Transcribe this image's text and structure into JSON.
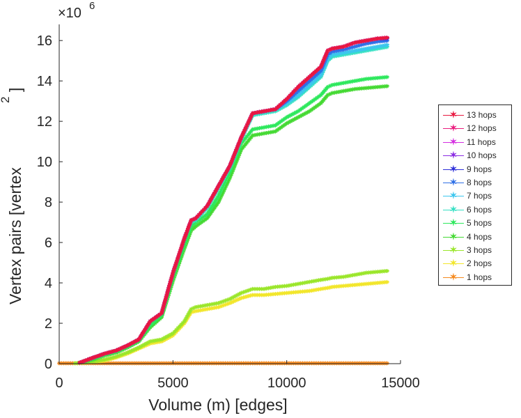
{
  "chart_data": {
    "type": "line",
    "title": "",
    "xlabel": "Volume (m) [edges]",
    "ylabel": "Vertex pairs [vertex",
    "ylabel_superscript": "2",
    "ylabel_close": "]",
    "y_exponent_label": "×10",
    "y_exponent_power": "6",
    "xlim": [
      0,
      15000
    ],
    "ylim": [
      0,
      16.8
    ],
    "xticks": [
      0,
      5000,
      10000,
      15000
    ],
    "xtick_labels": [
      "0",
      "5000",
      "10000",
      "15000"
    ],
    "yticks": [
      0,
      2,
      4,
      6,
      8,
      10,
      12,
      14,
      16
    ],
    "ytick_labels": [
      "0",
      "2",
      "4",
      "6",
      "8",
      "10",
      "12",
      "14",
      "16"
    ],
    "y_units": "millions (×10^6)",
    "marker": "*",
    "legend_position": "outside-right",
    "series": [
      {
        "name": "13 hops",
        "color": "#e8173f",
        "x": [
          900,
          1500,
          2000,
          2500,
          3000,
          3500,
          4000,
          4500,
          5000,
          5500,
          5800,
          6000,
          6500,
          7000,
          7500,
          8000,
          8500,
          9000,
          9500,
          10000,
          10500,
          11000,
          11500,
          11800,
          12000,
          12500,
          13000,
          13500,
          14000,
          14500
        ],
        "y": [
          0.05,
          0.3,
          0.5,
          0.65,
          0.9,
          1.2,
          2.1,
          2.5,
          4.5,
          6.2,
          7.1,
          7.2,
          7.8,
          8.8,
          9.8,
          11.2,
          12.4,
          12.5,
          12.6,
          13.1,
          13.7,
          14.2,
          14.7,
          15.5,
          15.6,
          15.7,
          15.9,
          16.0,
          16.1,
          16.15
        ]
      },
      {
        "name": "12 hops",
        "color": "#ea1d7e",
        "x": [
          900,
          1500,
          2000,
          2500,
          3000,
          3500,
          4000,
          4500,
          5000,
          5500,
          5800,
          6000,
          6500,
          7000,
          7500,
          8000,
          8500,
          9000,
          9500,
          10000,
          10500,
          11000,
          11500,
          11800,
          12000,
          12500,
          13000,
          13500,
          14000,
          14500
        ],
        "y": [
          0.05,
          0.3,
          0.5,
          0.65,
          0.9,
          1.2,
          2.1,
          2.5,
          4.5,
          6.2,
          7.1,
          7.2,
          7.8,
          8.8,
          9.8,
          11.2,
          12.4,
          12.5,
          12.6,
          13.1,
          13.7,
          14.2,
          14.7,
          15.5,
          15.6,
          15.7,
          15.9,
          16.0,
          16.1,
          16.15
        ]
      },
      {
        "name": "11 hops",
        "color": "#d42ee0",
        "x": [
          900,
          1500,
          2000,
          2500,
          3000,
          3500,
          4000,
          4500,
          5000,
          5500,
          5800,
          6000,
          6500,
          7000,
          7500,
          8000,
          8500,
          9000,
          9500,
          10000,
          10500,
          11000,
          11500,
          11800,
          12000,
          12500,
          13000,
          13500,
          14000,
          14500
        ],
        "y": [
          0.05,
          0.3,
          0.5,
          0.65,
          0.9,
          1.2,
          2.1,
          2.5,
          4.5,
          6.2,
          7.1,
          7.2,
          7.8,
          8.8,
          9.8,
          11.2,
          12.4,
          12.5,
          12.6,
          13.1,
          13.7,
          14.2,
          14.7,
          15.5,
          15.6,
          15.7,
          15.9,
          16.0,
          16.1,
          16.15
        ]
      },
      {
        "name": "10 hops",
        "color": "#8a2be2",
        "x": [
          900,
          1500,
          2000,
          2500,
          3000,
          3500,
          4000,
          4500,
          5000,
          5500,
          5800,
          6000,
          6500,
          7000,
          7500,
          8000,
          8500,
          9000,
          9500,
          10000,
          10500,
          11000,
          11500,
          11800,
          12000,
          12500,
          13000,
          13500,
          14000,
          14500
        ],
        "y": [
          0.05,
          0.3,
          0.5,
          0.65,
          0.9,
          1.2,
          2.1,
          2.5,
          4.5,
          6.2,
          7.1,
          7.2,
          7.8,
          8.8,
          9.8,
          11.2,
          12.4,
          12.5,
          12.6,
          13.1,
          13.7,
          14.2,
          14.7,
          15.5,
          15.6,
          15.7,
          15.9,
          16.0,
          16.1,
          16.15
        ]
      },
      {
        "name": "9 hops",
        "color": "#2d2fd8",
        "x": [
          900,
          1500,
          2000,
          2500,
          3000,
          3500,
          4000,
          4500,
          5000,
          5500,
          5800,
          6000,
          6500,
          7000,
          7500,
          8000,
          8500,
          9000,
          9500,
          10000,
          10500,
          11000,
          11500,
          11800,
          12000,
          12500,
          13000,
          13500,
          14000,
          14500
        ],
        "y": [
          0.05,
          0.3,
          0.5,
          0.65,
          0.9,
          1.2,
          2.1,
          2.5,
          4.5,
          6.2,
          7.1,
          7.2,
          7.8,
          8.8,
          9.8,
          11.2,
          12.4,
          12.5,
          12.6,
          13.1,
          13.7,
          14.2,
          14.7,
          15.5,
          15.6,
          15.7,
          15.9,
          16.0,
          16.1,
          16.1
        ]
      },
      {
        "name": "8 hops",
        "color": "#2e6fe6",
        "x": [
          900,
          1500,
          2000,
          2500,
          3000,
          3500,
          4000,
          4500,
          5000,
          5500,
          5800,
          6000,
          6500,
          7000,
          7500,
          8000,
          8500,
          9000,
          9500,
          10000,
          10500,
          11000,
          11500,
          11800,
          12000,
          12500,
          13000,
          13500,
          14000,
          14500
        ],
        "y": [
          0.05,
          0.3,
          0.5,
          0.65,
          0.9,
          1.2,
          2.1,
          2.5,
          4.5,
          6.2,
          7.1,
          7.2,
          7.8,
          8.8,
          9.8,
          11.2,
          12.4,
          12.5,
          12.6,
          13.0,
          13.5,
          14.0,
          14.5,
          15.3,
          15.45,
          15.55,
          15.7,
          15.85,
          15.95,
          16.0
        ]
      },
      {
        "name": "7 hops",
        "color": "#3cc6ee",
        "x": [
          900,
          1500,
          2000,
          2500,
          3000,
          3500,
          4000,
          4500,
          5000,
          5500,
          5800,
          6000,
          6500,
          7000,
          7500,
          8000,
          8500,
          9000,
          9500,
          10000,
          10500,
          11000,
          11500,
          11800,
          12000,
          12500,
          13000,
          13500,
          14000,
          14500
        ],
        "y": [
          0.05,
          0.3,
          0.5,
          0.65,
          0.9,
          1.2,
          2.1,
          2.5,
          4.5,
          6.2,
          7.1,
          7.2,
          7.8,
          8.8,
          9.8,
          11.2,
          12.4,
          12.5,
          12.6,
          12.9,
          13.3,
          13.8,
          14.3,
          15.1,
          15.3,
          15.4,
          15.5,
          15.6,
          15.7,
          15.8
        ]
      },
      {
        "name": "6 hops",
        "color": "#36e0c4",
        "x": [
          900,
          1500,
          2000,
          2500,
          3000,
          3500,
          4000,
          4500,
          5000,
          5500,
          5800,
          6000,
          6500,
          7000,
          7500,
          8000,
          8500,
          9000,
          9500,
          10000,
          10500,
          11000,
          11500,
          11800,
          12000,
          12500,
          13000,
          13500,
          14000,
          14500
        ],
        "y": [
          0.05,
          0.3,
          0.5,
          0.65,
          0.9,
          1.2,
          2.1,
          2.5,
          4.5,
          6.2,
          7.0,
          7.1,
          7.7,
          8.7,
          9.7,
          11.1,
          12.3,
          12.4,
          12.5,
          12.8,
          13.2,
          13.7,
          14.2,
          15.0,
          15.2,
          15.3,
          15.4,
          15.5,
          15.6,
          15.7
        ]
      },
      {
        "name": "5 hops",
        "color": "#2de85c",
        "x": [
          900,
          1500,
          2000,
          2500,
          3000,
          3500,
          4000,
          4500,
          5000,
          5500,
          5800,
          6000,
          6500,
          7000,
          7500,
          8000,
          8500,
          9000,
          9500,
          10000,
          10500,
          11000,
          11500,
          11800,
          12000,
          12500,
          13000,
          13500,
          14000,
          14500
        ],
        "y": [
          0.05,
          0.25,
          0.45,
          0.6,
          0.85,
          1.15,
          1.9,
          2.4,
          4.3,
          5.9,
          6.8,
          7.0,
          7.4,
          8.3,
          9.5,
          10.9,
          11.6,
          11.7,
          11.8,
          12.2,
          12.5,
          12.9,
          13.3,
          13.7,
          13.8,
          13.9,
          14.0,
          14.1,
          14.15,
          14.2
        ]
      },
      {
        "name": "4 hops",
        "color": "#44d932",
        "x": [
          900,
          1500,
          2000,
          2500,
          3000,
          3500,
          4000,
          4500,
          5000,
          5500,
          5800,
          6000,
          6500,
          7000,
          7500,
          8000,
          8500,
          9000,
          9500,
          10000,
          10500,
          11000,
          11500,
          11800,
          12000,
          12500,
          13000,
          13500,
          14000,
          14500
        ],
        "y": [
          0.05,
          0.2,
          0.4,
          0.55,
          0.8,
          1.1,
          1.8,
          2.3,
          4.1,
          5.7,
          6.6,
          6.8,
          7.2,
          8.0,
          9.2,
          10.6,
          11.3,
          11.4,
          11.5,
          11.9,
          12.2,
          12.5,
          12.9,
          13.3,
          13.4,
          13.5,
          13.6,
          13.65,
          13.7,
          13.75
        ]
      },
      {
        "name": "3 hops",
        "color": "#9ae62a",
        "x": [
          700,
          1500,
          2000,
          2500,
          3000,
          3500,
          4000,
          4500,
          5000,
          5500,
          5800,
          6000,
          6500,
          7000,
          7500,
          8000,
          8500,
          9000,
          9500,
          10000,
          10500,
          11000,
          11500,
          11800,
          12000,
          12500,
          13000,
          13500,
          14000,
          14500
        ],
        "y": [
          0.02,
          0.1,
          0.2,
          0.35,
          0.55,
          0.8,
          1.1,
          1.2,
          1.5,
          2.1,
          2.7,
          2.8,
          2.9,
          3.0,
          3.2,
          3.5,
          3.7,
          3.7,
          3.8,
          3.85,
          3.95,
          4.05,
          4.15,
          4.2,
          4.25,
          4.3,
          4.4,
          4.5,
          4.55,
          4.6
        ]
      },
      {
        "name": "2 hops",
        "color": "#f2e62a",
        "x": [
          700,
          1500,
          2000,
          2500,
          3000,
          3500,
          4000,
          4500,
          5000,
          5500,
          5800,
          6000,
          6500,
          7000,
          7500,
          8000,
          8500,
          9000,
          9500,
          10000,
          10500,
          11000,
          11500,
          11800,
          12000,
          12500,
          13000,
          13500,
          14000,
          14500
        ],
        "y": [
          0.02,
          0.08,
          0.15,
          0.3,
          0.5,
          0.75,
          1.0,
          1.1,
          1.4,
          2.0,
          2.55,
          2.6,
          2.7,
          2.8,
          3.0,
          3.25,
          3.4,
          3.4,
          3.45,
          3.5,
          3.55,
          3.6,
          3.7,
          3.75,
          3.8,
          3.85,
          3.9,
          3.95,
          4.0,
          4.05
        ]
      },
      {
        "name": "1 hops",
        "color": "#f58a1f",
        "x": [
          0,
          500,
          1000,
          1500,
          2000,
          2500,
          3000,
          3500,
          4000,
          4500,
          5000,
          5500,
          6000,
          6500,
          7000,
          7500,
          8000,
          8500,
          9000,
          9500,
          10000,
          10500,
          11000,
          11500,
          12000,
          12500,
          13000,
          13500,
          14000,
          14500
        ],
        "y": [
          0.02,
          0.02,
          0.02,
          0.02,
          0.02,
          0.02,
          0.02,
          0.02,
          0.02,
          0.02,
          0.02,
          0.02,
          0.02,
          0.02,
          0.02,
          0.02,
          0.02,
          0.02,
          0.02,
          0.02,
          0.02,
          0.02,
          0.02,
          0.02,
          0.02,
          0.02,
          0.02,
          0.02,
          0.02,
          0.02
        ]
      }
    ]
  }
}
